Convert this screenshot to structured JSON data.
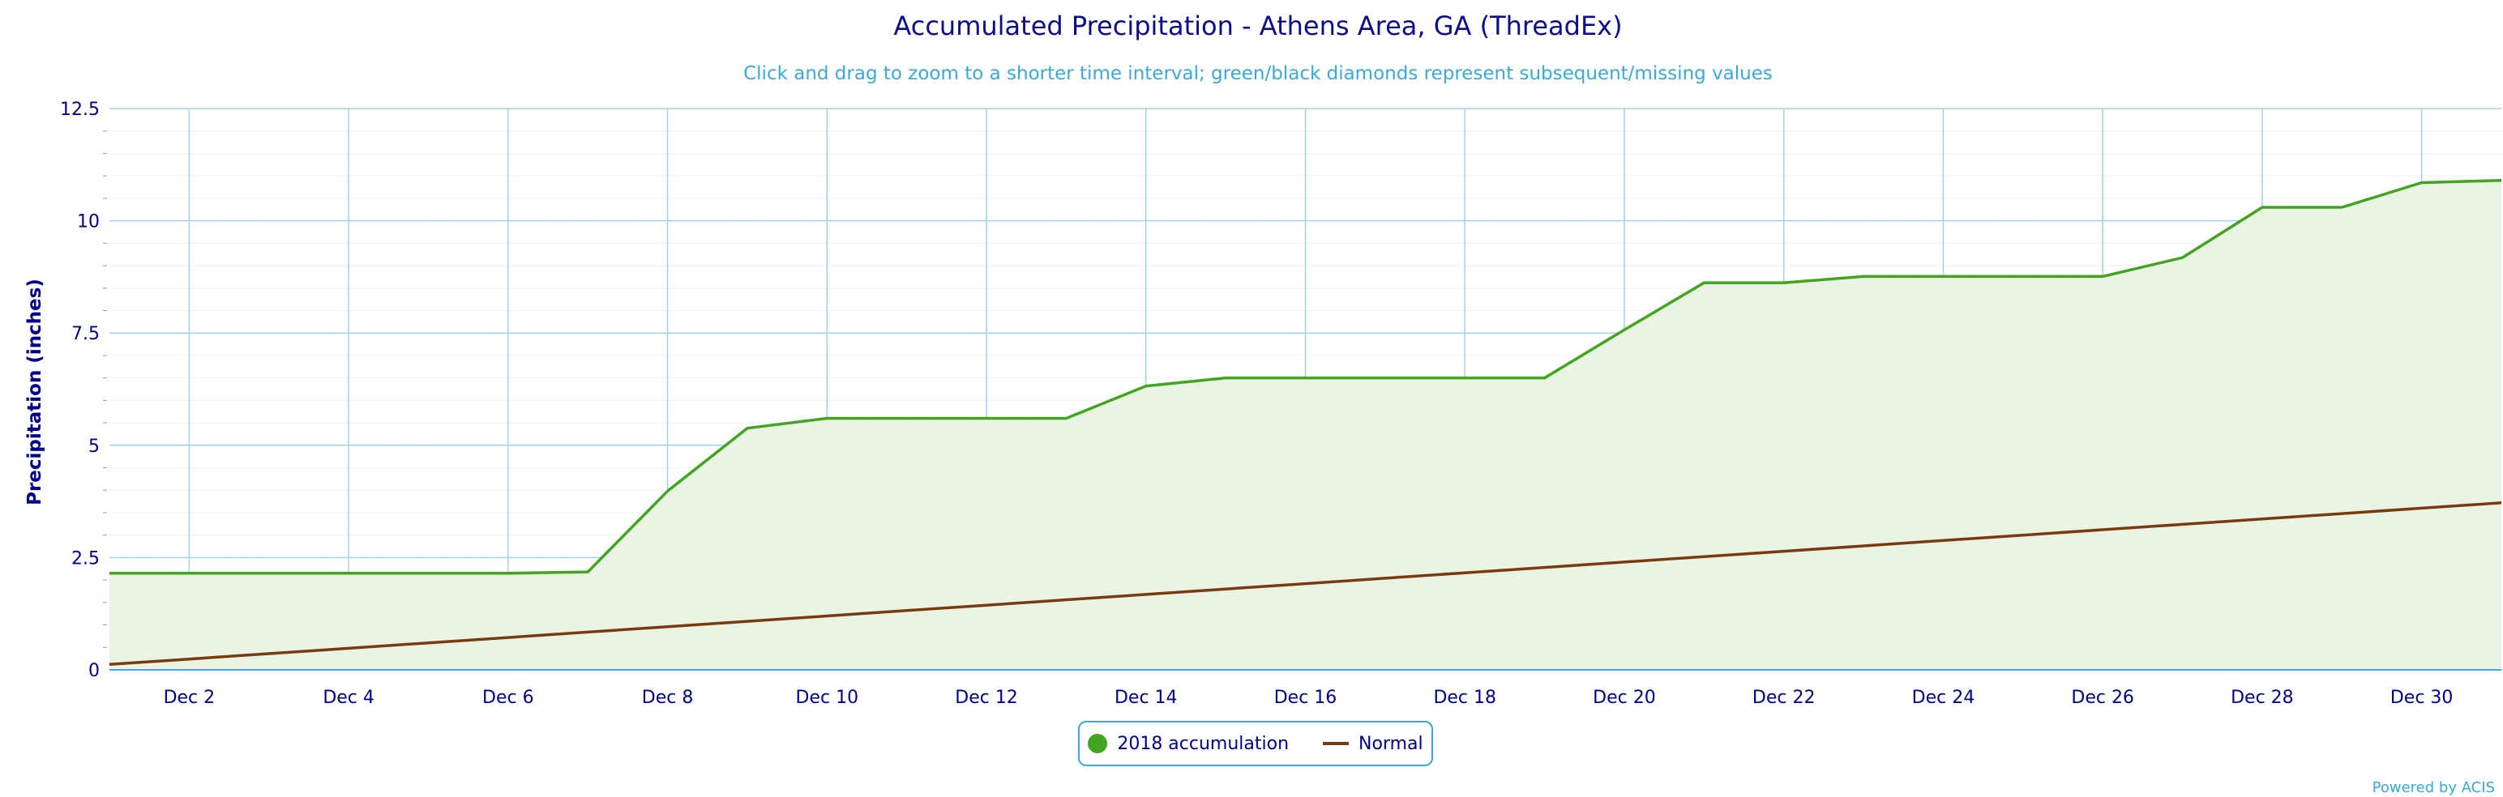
{
  "title": "Accumulated Precipitation - Athens Area, GA (ThreadEx)",
  "subtitle": "Click and drag to zoom to a shorter time interval; green/black diamonds represent subsequent/missing values",
  "credit": "Powered by ACIS",
  "colors": {
    "accumulation_line": "#42a420",
    "accumulation_fill": "#eaf4e4",
    "normal_line": "#7a3a10",
    "grid": "#a6d0e6",
    "text": "#00008b",
    "subtitle": "#3aa9d8"
  },
  "chart_data": {
    "type": "area",
    "title": "Accumulated Precipitation - Athens Area, GA (ThreadEx)",
    "subtitle": "Click and drag to zoom to a shorter time interval; green/black diamonds represent subsequent/missing values",
    "ylabel": "Precipitation (inches)",
    "xlabel": "",
    "ylim": [
      0,
      12.5
    ],
    "xlim": [
      1,
      31
    ],
    "yticks": [
      "0",
      "2.5",
      "5",
      "7.5",
      "10",
      "12.5"
    ],
    "xticks": [
      {
        "day": 2,
        "label": "Dec 2"
      },
      {
        "day": 4,
        "label": "Dec 4"
      },
      {
        "day": 6,
        "label": "Dec 6"
      },
      {
        "day": 8,
        "label": "Dec 8"
      },
      {
        "day": 10,
        "label": "Dec 10"
      },
      {
        "day": 12,
        "label": "Dec 12"
      },
      {
        "day": 14,
        "label": "Dec 14"
      },
      {
        "day": 16,
        "label": "Dec 16"
      },
      {
        "day": 18,
        "label": "Dec 18"
      },
      {
        "day": 20,
        "label": "Dec 20"
      },
      {
        "day": 22,
        "label": "Dec 22"
      },
      {
        "day": 24,
        "label": "Dec 24"
      },
      {
        "day": 26,
        "label": "Dec 26"
      },
      {
        "day": 28,
        "label": "Dec 28"
      },
      {
        "day": 30,
        "label": "Dec 30"
      }
    ],
    "x": [
      1,
      2,
      3,
      4,
      5,
      6,
      7,
      8,
      9,
      10,
      11,
      12,
      13,
      14,
      15,
      16,
      17,
      18,
      19,
      20,
      21,
      22,
      23,
      24,
      25,
      26,
      27,
      28,
      29,
      30,
      31
    ],
    "series": [
      {
        "name": "2018 accumulation",
        "style": "area",
        "values": [
          2.15,
          2.15,
          2.15,
          2.15,
          2.15,
          2.15,
          2.18,
          3.98,
          5.38,
          5.6,
          5.6,
          5.6,
          5.6,
          6.32,
          6.5,
          6.5,
          6.5,
          6.5,
          6.5,
          7.57,
          8.62,
          8.62,
          8.76,
          8.76,
          8.76,
          8.76,
          9.18,
          10.3,
          10.3,
          10.85,
          10.9
        ]
      },
      {
        "name": "Normal",
        "style": "line",
        "values": [
          0.12,
          0.24,
          0.36,
          0.48,
          0.6,
          0.72,
          0.84,
          0.96,
          1.08,
          1.2,
          1.32,
          1.44,
          1.56,
          1.68,
          1.8,
          1.92,
          2.04,
          2.16,
          2.28,
          2.4,
          2.52,
          2.64,
          2.76,
          2.88,
          3.0,
          3.12,
          3.24,
          3.36,
          3.48,
          3.6,
          3.72
        ]
      }
    ],
    "grid": true,
    "legend": "bottom-center"
  }
}
